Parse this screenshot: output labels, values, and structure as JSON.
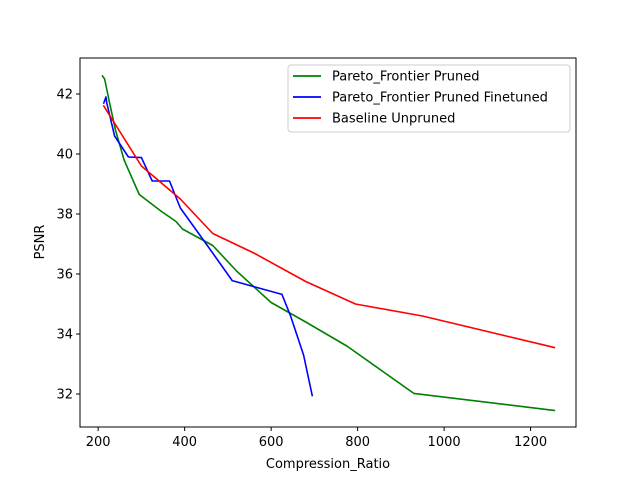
{
  "chart_data": {
    "type": "line",
    "title": "",
    "xlabel": "Compression_Ratio",
    "ylabel": "PSNR",
    "xlim": [
      158,
      1305
    ],
    "ylim": [
      30.9,
      43.2
    ],
    "xticks": [
      200,
      400,
      600,
      800,
      1000,
      1200
    ],
    "yticks": [
      32,
      34,
      36,
      38,
      40,
      42
    ],
    "grid": false,
    "legend_position": "top-right",
    "series": [
      {
        "name": "Pareto_Frontier Pruned",
        "color": "#008000",
        "x": [
          210,
          215,
          225,
          240,
          260,
          295,
          345,
          380,
          395,
          465,
          520,
          600,
          680,
          775,
          930,
          1255
        ],
        "y": [
          42.6,
          42.5,
          41.8,
          40.8,
          39.8,
          38.65,
          38.1,
          37.75,
          37.5,
          36.95,
          36.1,
          35.05,
          34.4,
          33.6,
          32.02,
          31.45
        ]
      },
      {
        "name": "Pareto_Frontier Pruned Finetuned",
        "color": "#0000ff",
        "x": [
          213,
          218,
          220,
          238,
          270,
          300,
          325,
          365,
          390,
          450,
          510,
          625,
          645,
          675,
          695
        ],
        "y": [
          41.7,
          41.9,
          41.7,
          40.6,
          39.9,
          39.88,
          39.1,
          39.1,
          38.2,
          37.0,
          35.78,
          35.32,
          34.6,
          33.3,
          31.95
        ]
      },
      {
        "name": "Baseline Unpruned",
        "color": "#ff0000",
        "x": [
          213,
          250,
          300,
          390,
          465,
          560,
          680,
          795,
          950,
          1255
        ],
        "y": [
          41.6,
          40.75,
          39.6,
          38.5,
          37.35,
          36.7,
          35.75,
          35.0,
          34.6,
          33.55
        ]
      }
    ]
  }
}
